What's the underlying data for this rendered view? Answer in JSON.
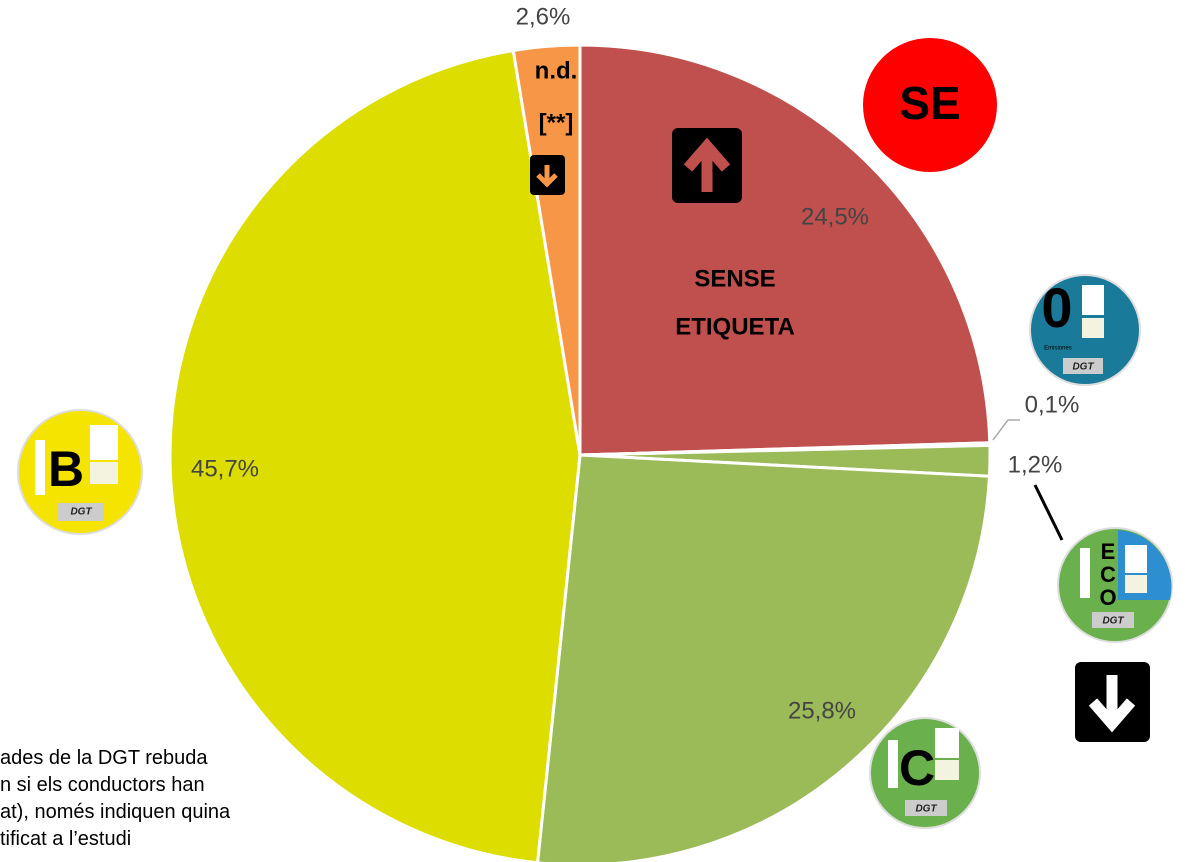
{
  "chart_data": {
    "type": "pie",
    "values": [
      24.5,
      0.1,
      1.2,
      25.8,
      45.7,
      2.6
    ],
    "value_labels": [
      "24,5%",
      "0,1%",
      "1,2%",
      "25,8%",
      "45,7%",
      "2,6%"
    ],
    "colors": [
      "#c0504d",
      "#4bacc6",
      "#9bbb59",
      "#9bbb59",
      "#dddd00",
      "#f79646"
    ],
    "annotations": {
      "sense": [
        "SENSE",
        "ETIQUETA"
      ],
      "nd": [
        "n.d.",
        "[**]"
      ],
      "se": "SE"
    },
    "badges": {
      "zero": "0",
      "zero_sub": "Emisiones",
      "eco": [
        "E",
        "C",
        "O"
      ],
      "c": "C",
      "b": "B",
      "dgt": "DGT"
    },
    "footnote": [
      "ades de la DGT rebuda",
      "n si els conductors han",
      "at), només indiquen quina",
      "tificat a l’estudi"
    ]
  }
}
